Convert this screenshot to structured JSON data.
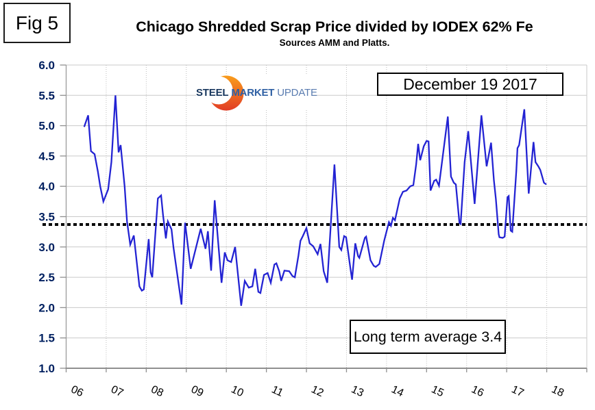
{
  "fig_label": "Fig 5",
  "title": "Chicago Shredded Scrap Price divided by IODEX 62% Fe",
  "subtitle": "Sources AMM and Platts.",
  "date_box": "December 19 2017",
  "average_box": "Long term average 3.4",
  "logo": {
    "word1": "STEEL",
    "word2": "MARKET",
    "word3": "UPDATE"
  },
  "colors": {
    "series_line": "#2323d3",
    "y_label": "#002060",
    "grid": "#c9c9c9",
    "axis": "#8f8f8f",
    "average_line": "#000000",
    "logo_navy": "#17365d",
    "logo_blue": "#2e5fa3",
    "logo_lightblue": "#5a7cb0",
    "logo_orange_top": "#f99d1c",
    "logo_orange_bottom": "#e23d25"
  },
  "chart_data": {
    "type": "line",
    "title": "Chicago Shredded Scrap Price divided by IODEX 62% Fe",
    "subtitle": "Sources AMM and Platts.",
    "xlim": [
      2006,
      2019
    ],
    "ylim": [
      1.0,
      6.0
    ],
    "grid": true,
    "x_tick_labels": [
      "06",
      "07",
      "08",
      "09",
      "10",
      "11",
      "12",
      "13",
      "14",
      "15",
      "16",
      "17",
      "18"
    ],
    "x_tick_years": [
      2006,
      2007,
      2008,
      2009,
      2010,
      2011,
      2012,
      2013,
      2014,
      2015,
      2016,
      2017,
      2018
    ],
    "y_tick_labels": [
      "6.0",
      "5.5",
      "5.0",
      "4.5",
      "4.0",
      "3.5",
      "3.0",
      "2.5",
      "2.0",
      "1.5",
      "1.0"
    ],
    "y_tick_values": [
      6.0,
      5.5,
      5.0,
      4.5,
      4.0,
      3.5,
      3.0,
      2.5,
      2.0,
      1.5,
      1.0
    ],
    "average_line_value": 3.37,
    "average_line_label": "Long term average 3.4",
    "annotation": "December 19 2017",
    "series": [
      {
        "name": "Chicago Shredded Scrap Price / IODEX 62% Fe",
        "color": "#2323d3",
        "points": [
          [
            2006.45,
            4.98
          ],
          [
            2006.55,
            5.17
          ],
          [
            2006.62,
            4.58
          ],
          [
            2006.71,
            4.53
          ],
          [
            2006.79,
            4.25
          ],
          [
            2006.85,
            4.0
          ],
          [
            2006.93,
            3.75
          ],
          [
            2007.05,
            3.95
          ],
          [
            2007.13,
            4.4
          ],
          [
            2007.23,
            5.5
          ],
          [
            2007.31,
            4.56
          ],
          [
            2007.36,
            4.68
          ],
          [
            2007.46,
            4.0
          ],
          [
            2007.52,
            3.42
          ],
          [
            2007.6,
            3.04
          ],
          [
            2007.69,
            3.19
          ],
          [
            2007.83,
            2.35
          ],
          [
            2007.89,
            2.28
          ],
          [
            2007.94,
            2.3
          ],
          [
            2008.06,
            3.13
          ],
          [
            2008.11,
            2.58
          ],
          [
            2008.15,
            2.5
          ],
          [
            2008.29,
            3.8
          ],
          [
            2008.37,
            3.85
          ],
          [
            2008.42,
            3.52
          ],
          [
            2008.49,
            3.14
          ],
          [
            2008.54,
            3.42
          ],
          [
            2008.63,
            3.29
          ],
          [
            2008.68,
            2.99
          ],
          [
            2008.88,
            2.05
          ],
          [
            2008.97,
            3.4
          ],
          [
            2009.11,
            2.64
          ],
          [
            2009.36,
            3.3
          ],
          [
            2009.48,
            2.97
          ],
          [
            2009.54,
            3.26
          ],
          [
            2009.62,
            2.61
          ],
          [
            2009.71,
            3.77
          ],
          [
            2009.88,
            2.41
          ],
          [
            2009.96,
            2.91
          ],
          [
            2010.03,
            2.78
          ],
          [
            2010.12,
            2.75
          ],
          [
            2010.22,
            3.0
          ],
          [
            2010.37,
            2.03
          ],
          [
            2010.46,
            2.44
          ],
          [
            2010.56,
            2.33
          ],
          [
            2010.65,
            2.35
          ],
          [
            2010.72,
            2.64
          ],
          [
            2010.8,
            2.26
          ],
          [
            2010.85,
            2.24
          ],
          [
            2010.94,
            2.54
          ],
          [
            2011.03,
            2.57
          ],
          [
            2011.11,
            2.41
          ],
          [
            2011.2,
            2.71
          ],
          [
            2011.25,
            2.73
          ],
          [
            2011.32,
            2.6
          ],
          [
            2011.37,
            2.44
          ],
          [
            2011.45,
            2.61
          ],
          [
            2011.57,
            2.6
          ],
          [
            2011.65,
            2.52
          ],
          [
            2011.71,
            2.5
          ],
          [
            2011.8,
            2.86
          ],
          [
            2011.85,
            3.1
          ],
          [
            2011.91,
            3.18
          ],
          [
            2012.0,
            3.31
          ],
          [
            2012.08,
            3.06
          ],
          [
            2012.17,
            3.01
          ],
          [
            2012.28,
            2.88
          ],
          [
            2012.35,
            3.05
          ],
          [
            2012.43,
            2.6
          ],
          [
            2012.52,
            2.41
          ],
          [
            2012.7,
            4.36
          ],
          [
            2012.82,
            3.0
          ],
          [
            2012.87,
            2.95
          ],
          [
            2012.94,
            3.18
          ],
          [
            2012.99,
            3.16
          ],
          [
            2013.11,
            2.59
          ],
          [
            2013.14,
            2.46
          ],
          [
            2013.22,
            3.06
          ],
          [
            2013.29,
            2.85
          ],
          [
            2013.32,
            2.82
          ],
          [
            2013.46,
            3.15
          ],
          [
            2013.49,
            3.17
          ],
          [
            2013.6,
            2.78
          ],
          [
            2013.68,
            2.69
          ],
          [
            2013.73,
            2.67
          ],
          [
            2013.82,
            2.72
          ],
          [
            2013.94,
            3.1
          ],
          [
            2014.06,
            3.41
          ],
          [
            2014.11,
            3.35
          ],
          [
            2014.16,
            3.48
          ],
          [
            2014.21,
            3.44
          ],
          [
            2014.33,
            3.8
          ],
          [
            2014.41,
            3.91
          ],
          [
            2014.5,
            3.93
          ],
          [
            2014.59,
            4.0
          ],
          [
            2014.67,
            4.02
          ],
          [
            2014.74,
            4.36
          ],
          [
            2014.79,
            4.7
          ],
          [
            2014.84,
            4.43
          ],
          [
            2014.93,
            4.66
          ],
          [
            2015.0,
            4.75
          ],
          [
            2015.05,
            4.74
          ],
          [
            2015.1,
            3.93
          ],
          [
            2015.19,
            4.09
          ],
          [
            2015.24,
            4.11
          ],
          [
            2015.31,
            4.01
          ],
          [
            2015.53,
            5.15
          ],
          [
            2015.61,
            4.16
          ],
          [
            2015.68,
            4.06
          ],
          [
            2015.73,
            4.03
          ],
          [
            2015.82,
            3.4
          ],
          [
            2015.85,
            3.38
          ],
          [
            2015.95,
            4.4
          ],
          [
            2016.04,
            4.91
          ],
          [
            2016.2,
            3.71
          ],
          [
            2016.37,
            5.17
          ],
          [
            2016.5,
            4.33
          ],
          [
            2016.61,
            4.72
          ],
          [
            2016.68,
            4.1
          ],
          [
            2016.73,
            3.79
          ],
          [
            2016.8,
            3.21
          ],
          [
            2016.82,
            3.16
          ],
          [
            2016.9,
            3.15
          ],
          [
            2016.95,
            3.17
          ],
          [
            2017.02,
            3.82
          ],
          [
            2017.05,
            3.84
          ],
          [
            2017.1,
            3.27
          ],
          [
            2017.14,
            3.25
          ],
          [
            2017.24,
            4.25
          ],
          [
            2017.27,
            4.63
          ],
          [
            2017.31,
            4.68
          ],
          [
            2017.44,
            5.27
          ],
          [
            2017.55,
            3.88
          ],
          [
            2017.67,
            4.73
          ],
          [
            2017.72,
            4.4
          ],
          [
            2017.79,
            4.33
          ],
          [
            2017.84,
            4.27
          ],
          [
            2017.93,
            4.06
          ],
          [
            2017.99,
            4.03
          ]
        ]
      }
    ]
  }
}
